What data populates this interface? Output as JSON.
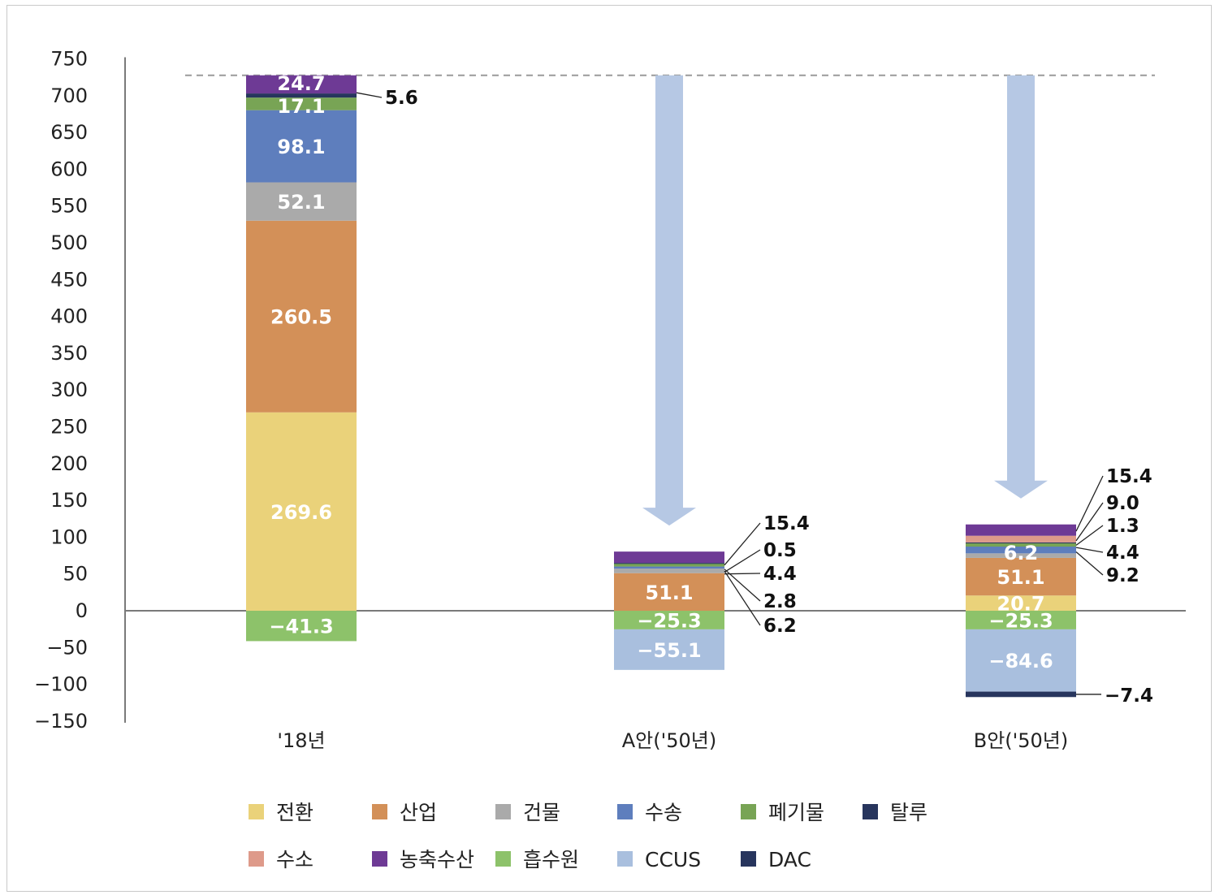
{
  "chart_data": {
    "type": "bar",
    "stacked": true,
    "categories": [
      "'18년",
      "A안('50년)",
      "B안('50년)"
    ],
    "ylim": [
      -150,
      750
    ],
    "yticks": [
      750,
      700,
      650,
      600,
      550,
      500,
      450,
      400,
      350,
      300,
      250,
      200,
      150,
      100,
      50,
      0,
      -50,
      -100,
      -150
    ],
    "ytick_labels": [
      "750",
      "700",
      "650",
      "600",
      "550",
      "500",
      "450",
      "400",
      "350",
      "300",
      "250",
      "200",
      "150",
      "100",
      "50",
      "0",
      "−50",
      "−100",
      "−150"
    ],
    "reference_line": 727.6,
    "series": [
      {
        "name": "전환",
        "color": "#EAD27A",
        "values": [
          269.6,
          0,
          20.7
        ],
        "labels": [
          "269.6",
          "",
          "20.7"
        ]
      },
      {
        "name": "산업",
        "color": "#D39058",
        "values": [
          260.5,
          51.1,
          51.1
        ],
        "labels": [
          "260.5",
          "51.1",
          "51.1"
        ]
      },
      {
        "name": "건물",
        "color": "#AAAAAA",
        "values": [
          52.1,
          6.2,
          6.2
        ],
        "labels": [
          "52.1",
          "6.2",
          "6.2"
        ]
      },
      {
        "name": "수송",
        "color": "#5E7EBD",
        "values": [
          98.1,
          2.8,
          9.2
        ],
        "labels": [
          "98.1",
          "2.8",
          "9.2"
        ]
      },
      {
        "name": "폐기물",
        "color": "#78A455",
        "values": [
          17.1,
          4.4,
          4.4
        ],
        "labels": [
          "17.1",
          "4.4",
          "4.4"
        ]
      },
      {
        "name": "탈루",
        "color": "#27355D",
        "values": [
          5.6,
          0.5,
          1.3
        ],
        "labels": [
          "5.6",
          "0.5",
          "1.3"
        ]
      },
      {
        "name": "수소",
        "color": "#DE9A8A",
        "values": [
          0,
          0,
          9.0
        ],
        "labels": [
          "",
          "",
          "9.0"
        ]
      },
      {
        "name": "농축수산",
        "color": "#6E3A95",
        "values": [
          24.7,
          15.4,
          15.4
        ],
        "labels": [
          "24.7",
          "15.4",
          "15.4"
        ]
      },
      {
        "name": "흡수원",
        "color": "#8DC26A",
        "values": [
          -41.3,
          -25.3,
          -25.3
        ],
        "labels": [
          "−41.3",
          "−25.3",
          "−25.3"
        ]
      },
      {
        "name": "CCUS",
        "color": "#A9BFDE",
        "values": [
          0,
          -55.1,
          -84.6
        ],
        "labels": [
          "",
          "−55.1",
          "−84.6"
        ]
      },
      {
        "name": "DAC",
        "color": "#27355D",
        "values": [
          0,
          0,
          -7.4
        ],
        "labels": [
          "",
          "",
          "−7.4"
        ]
      }
    ],
    "arrow_color": "#B6C8E4",
    "legend": {
      "placement": "bottom",
      "rows": [
        [
          "전환",
          "산업",
          "건물",
          "수송",
          "폐기물",
          "탈루"
        ],
        [
          "수소",
          "농축수산",
          "흡수원",
          "CCUS",
          "DAC"
        ]
      ]
    }
  }
}
